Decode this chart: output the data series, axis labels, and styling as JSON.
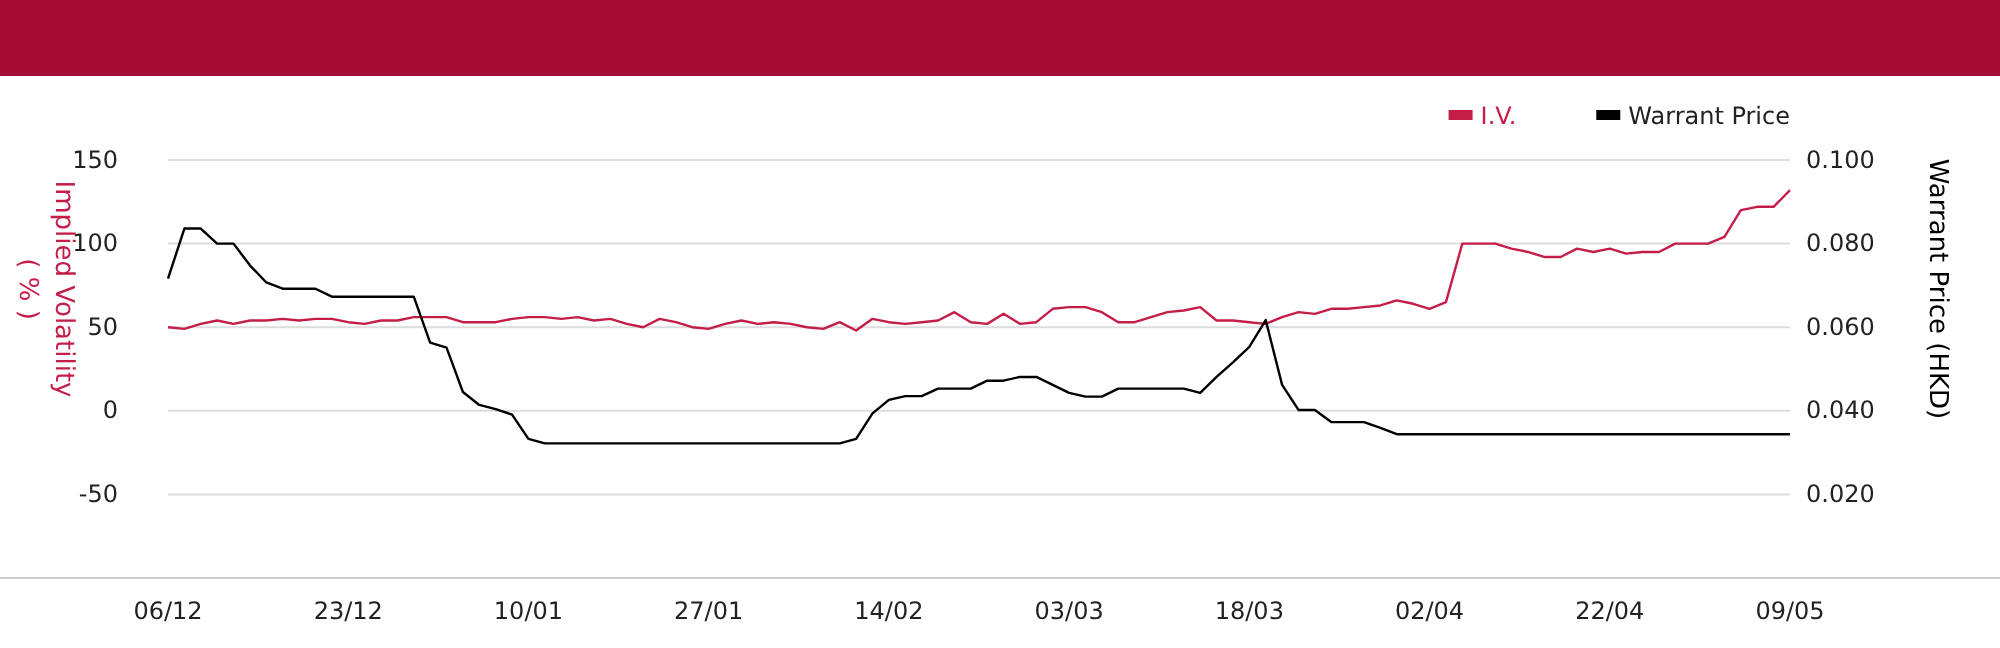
{
  "chart_data": {
    "type": "line",
    "categories": [
      "06/12",
      null,
      null,
      null,
      null,
      null,
      null,
      null,
      null,
      null,
      null,
      "23/12",
      null,
      null,
      null,
      null,
      null,
      null,
      null,
      null,
      null,
      null,
      "10/01",
      null,
      null,
      null,
      null,
      null,
      null,
      null,
      null,
      null,
      null,
      "27/01",
      null,
      null,
      null,
      null,
      null,
      null,
      null,
      null,
      null,
      null,
      "14/02",
      null,
      null,
      null,
      null,
      null,
      null,
      null,
      null,
      null,
      null,
      "03/03",
      null,
      null,
      null,
      null,
      null,
      null,
      null,
      null,
      null,
      null,
      "18/03",
      null,
      null,
      null,
      null,
      null,
      null,
      null,
      null,
      null,
      null,
      "02/04",
      null,
      null,
      null,
      null,
      null,
      null,
      null,
      null,
      null,
      null,
      "22/04",
      null,
      null,
      null,
      null,
      null,
      null,
      null,
      null,
      null,
      null,
      "09/05"
    ],
    "series": [
      {
        "name": "I.V.",
        "color": "#c41e48",
        "values": [
          50,
          49,
          52,
          54,
          52,
          54,
          54,
          55,
          54,
          55,
          55,
          53,
          52,
          54,
          54,
          56,
          56,
          56,
          53,
          53,
          53,
          55,
          56,
          56,
          55,
          56,
          54,
          55,
          52,
          50,
          55,
          53,
          50,
          49,
          52,
          54,
          52,
          53,
          52,
          50,
          49,
          53,
          48,
          55,
          53,
          52,
          53,
          54,
          59,
          53,
          52,
          58,
          52,
          53,
          61,
          62,
          62,
          59,
          53,
          53,
          56,
          59,
          60,
          62,
          54,
          54,
          53,
          52,
          56,
          59,
          58,
          61,
          61,
          62,
          63,
          66,
          64,
          61,
          65,
          100,
          100,
          100,
          97,
          95,
          92,
          92,
          97,
          95,
          97,
          94,
          95,
          95,
          100,
          100,
          100,
          104,
          120,
          122,
          122,
          132
        ]
      },
      {
        "name": "Warrant Price",
        "color": "#000000",
        "axis": "y2",
        "values": [
          0.0716,
          0.0836,
          0.0836,
          0.08,
          0.08,
          0.0748,
          0.0707,
          0.0692,
          0.0692,
          0.0692,
          0.0673,
          0.0673,
          0.0673,
          0.0673,
          0.0673,
          0.0673,
          0.0563,
          0.0551,
          0.0445,
          0.0414,
          0.0404,
          0.0391,
          0.0333,
          0.0322,
          0.0322,
          0.0322,
          0.0322,
          0.0322,
          0.0322,
          0.0322,
          0.0322,
          0.0322,
          0.0322,
          0.0322,
          0.0322,
          0.0322,
          0.0322,
          0.0322,
          0.0322,
          0.0322,
          0.0322,
          0.0322,
          0.0333,
          0.0394,
          0.0426,
          0.0435,
          0.0435,
          0.0453,
          0.0453,
          0.0453,
          0.0472,
          0.0472,
          0.0481,
          0.0481,
          0.0462,
          0.0443,
          0.0434,
          0.0434,
          0.0453,
          0.0453,
          0.0453,
          0.0453,
          0.0453,
          0.0443,
          0.0481,
          0.0516,
          0.0553,
          0.0617,
          0.0462,
          0.0402,
          0.0402,
          0.0373,
          0.0373,
          0.0373,
          0.0359,
          0.0344,
          0.0344,
          0.0344,
          0.0344,
          0.0344,
          0.0344,
          0.0344,
          0.0344,
          0.0344,
          0.0344,
          0.0344,
          0.0344,
          0.0344,
          0.0344,
          0.0344,
          0.0344,
          0.0344,
          0.0344,
          0.0344,
          0.0344,
          0.0344,
          0.0344,
          0.0344,
          0.0344,
          0.0344
        ]
      }
    ],
    "ylabel": "Implied Volatility\n( % )",
    "y2label": "Warrant Price (HKD)",
    "ylim": [
      -100,
      150
    ],
    "yticks": [
      -50,
      0,
      50,
      100,
      150
    ],
    "y2lim": [
      0,
      0.1
    ],
    "y2ticks": [
      {
        "value": 0.02,
        "label": "0.020"
      },
      {
        "value": 0.04,
        "label": "0.040"
      },
      {
        "value": 0.06,
        "label": "0.060"
      },
      {
        "value": 0.08,
        "label": "0.080"
      },
      {
        "value": 0.1,
        "label": "0.100"
      }
    ],
    "grid": "y",
    "legend": "top right"
  }
}
